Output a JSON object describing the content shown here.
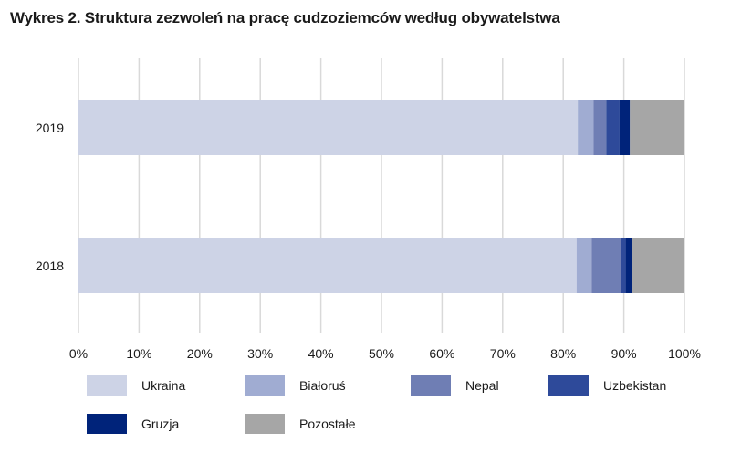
{
  "chart_data": {
    "type": "bar",
    "orientation": "horizontal",
    "stacked": true,
    "title": "Wykres 2. Struktura zezwoleń na pracę cudzoziemców według obywatelstwa",
    "categories": [
      "2019",
      "2018"
    ],
    "xlim": [
      0,
      100
    ],
    "xticks": [
      "0%",
      "10%",
      "20%",
      "30%",
      "40%",
      "50%",
      "60%",
      "70%",
      "80%",
      "90%",
      "100%"
    ],
    "grid": true,
    "legend_position": "bottom",
    "series": [
      {
        "name": "Ukraina",
        "color": "#cdd3e6",
        "values": [
          82.4,
          82.2
        ]
      },
      {
        "name": "Białoruś",
        "color": "#a0acd2",
        "values": [
          2.6,
          2.5
        ]
      },
      {
        "name": "Nepal",
        "color": "#6f7eb4",
        "values": [
          2.1,
          4.8
        ]
      },
      {
        "name": "Uzbekistan",
        "color": "#2e4a9a",
        "values": [
          2.2,
          0.8
        ]
      },
      {
        "name": "Gruzja",
        "color": "#00237a",
        "values": [
          1.7,
          1.0
        ]
      },
      {
        "name": "Pozostałe",
        "color": "#a6a6a6",
        "values": [
          9.0,
          8.7
        ]
      }
    ]
  }
}
